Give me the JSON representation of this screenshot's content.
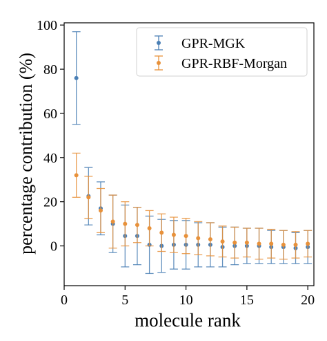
{
  "chart_data": {
    "type": "scatter",
    "xlabel": "molecule rank",
    "ylabel": "percentage contribution (%)",
    "xlim": [
      0,
      20.5
    ],
    "ylim": [
      -18,
      101
    ],
    "xticks": [
      0,
      5,
      10,
      15,
      20
    ],
    "yticks": [
      0,
      20,
      40,
      60,
      80,
      100
    ],
    "grid": false,
    "legend_position": "top-right",
    "series": [
      {
        "name": "GPR-MGK",
        "color": "#4a7fb5",
        "x": [
          1,
          2,
          3,
          4,
          5,
          6,
          7,
          8,
          9,
          10,
          11,
          12,
          13,
          14,
          15,
          16,
          17,
          18,
          19,
          20
        ],
        "y": [
          76,
          22.5,
          17,
          10,
          4.5,
          4.5,
          0.5,
          0,
          0.5,
          0.5,
          0.5,
          0.5,
          -0.5,
          0,
          0,
          0,
          -0.5,
          -0.5,
          -1,
          -0.5
        ],
        "err": [
          21,
          13,
          12,
          13,
          14,
          13,
          13,
          12,
          11,
          11,
          10,
          10,
          9,
          8.5,
          8,
          8,
          7.5,
          7.5,
          7,
          7.5
        ]
      },
      {
        "name": "GPR-RBF-Morgan",
        "color": "#e8913a",
        "x": [
          1,
          2,
          3,
          4,
          5,
          6,
          7,
          8,
          9,
          10,
          11,
          12,
          13,
          14,
          15,
          16,
          17,
          18,
          19,
          20
        ],
        "y": [
          32,
          22,
          16,
          11,
          10,
          9.5,
          8,
          6,
          5,
          4.5,
          3.5,
          3,
          2,
          1.5,
          1.5,
          1,
          1,
          0.5,
          0.5,
          1
        ],
        "err": [
          10,
          9.5,
          10,
          12,
          10,
          8,
          8,
          8.5,
          8,
          8,
          7.5,
          7.5,
          7,
          7,
          6.5,
          7,
          6.5,
          6.5,
          6,
          6
        ]
      }
    ]
  }
}
